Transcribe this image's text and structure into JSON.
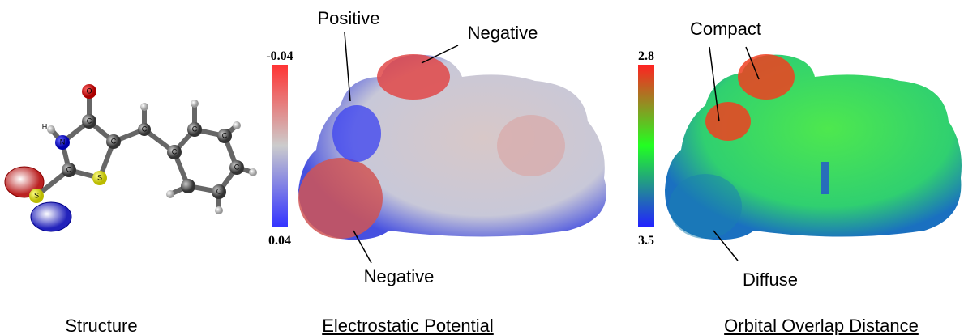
{
  "panels": [
    {
      "caption": "Structure",
      "atoms": [
        "O",
        "H",
        "N",
        "C",
        "C",
        "S",
        "S",
        "C",
        "C",
        "C",
        "C",
        "C",
        "C",
        "C"
      ]
    },
    {
      "caption": "Electrostatic Potential",
      "scale_top": "-0.04",
      "scale_bottom": "0.04",
      "annotations": [
        "Positive",
        "Negative",
        "Negative"
      ]
    },
    {
      "caption": "Orbital Overlap Distance",
      "scale_top": "2.8",
      "scale_bottom": "3.5",
      "annotations": [
        "Compact",
        "Diffuse"
      ]
    }
  ]
}
